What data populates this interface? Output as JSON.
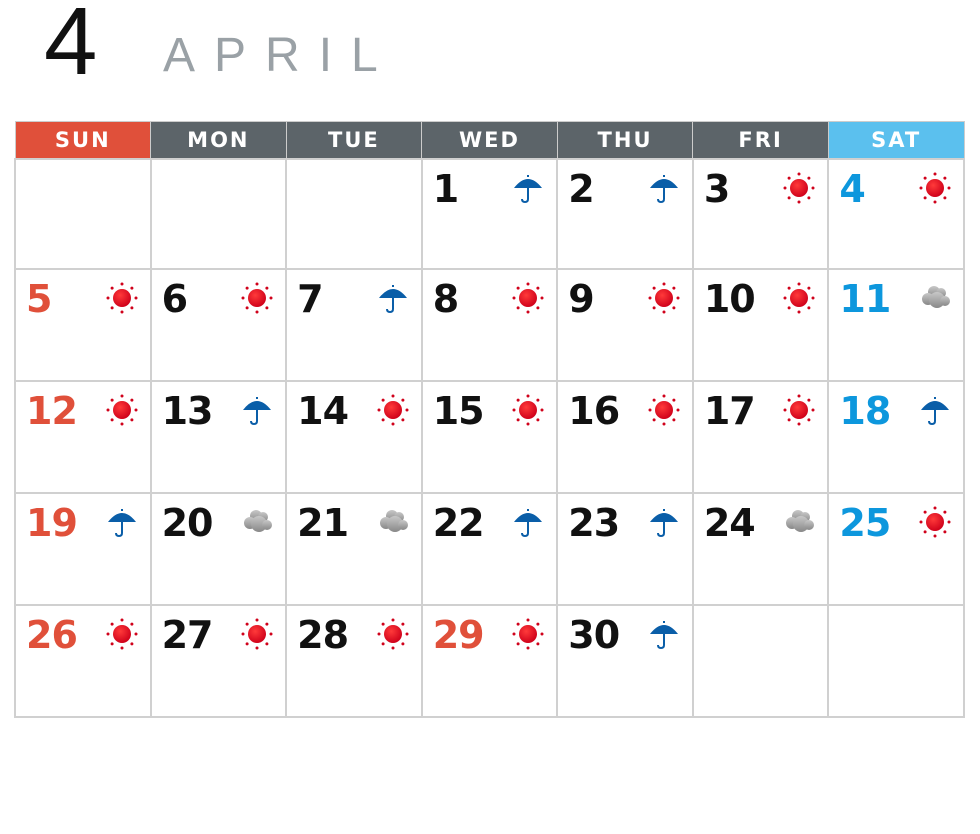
{
  "header": {
    "month_number": "4",
    "month_name": "APRIL"
  },
  "colors": {
    "sunday": "#e0503a",
    "saturday": "#0d97dd",
    "saturday_header": "#5bc0ee",
    "weekday_header": "#5c6469",
    "sun_icon": "#d0021b",
    "rain_icon": "#0a5ea8",
    "cloud_icon": "#9b9b9b"
  },
  "weekdays": [
    "SUN",
    "MON",
    "TUE",
    "WED",
    "THU",
    "FRI",
    "SAT"
  ],
  "weeks": [
    [
      null,
      null,
      null,
      {
        "day": "1",
        "weather": "rain"
      },
      {
        "day": "2",
        "weather": "rain"
      },
      {
        "day": "3",
        "weather": "sun"
      },
      {
        "day": "4",
        "weather": "sun"
      }
    ],
    [
      {
        "day": "5",
        "weather": "sun"
      },
      {
        "day": "6",
        "weather": "sun"
      },
      {
        "day": "7",
        "weather": "rain"
      },
      {
        "day": "8",
        "weather": "sun"
      },
      {
        "day": "9",
        "weather": "sun"
      },
      {
        "day": "10",
        "weather": "sun"
      },
      {
        "day": "11",
        "weather": "cloud"
      }
    ],
    [
      {
        "day": "12",
        "weather": "sun"
      },
      {
        "day": "13",
        "weather": "rain"
      },
      {
        "day": "14",
        "weather": "sun"
      },
      {
        "day": "15",
        "weather": "sun"
      },
      {
        "day": "16",
        "weather": "sun"
      },
      {
        "day": "17",
        "weather": "sun"
      },
      {
        "day": "18",
        "weather": "rain"
      }
    ],
    [
      {
        "day": "19",
        "weather": "rain"
      },
      {
        "day": "20",
        "weather": "cloud"
      },
      {
        "day": "21",
        "weather": "cloud"
      },
      {
        "day": "22",
        "weather": "rain"
      },
      {
        "day": "23",
        "weather": "rain"
      },
      {
        "day": "24",
        "weather": "cloud"
      },
      {
        "day": "25",
        "weather": "sun"
      }
    ],
    [
      {
        "day": "26",
        "weather": "sun"
      },
      {
        "day": "27",
        "weather": "sun"
      },
      {
        "day": "28",
        "weather": "sun"
      },
      {
        "day": "29",
        "weather": "sun",
        "holiday": true
      },
      {
        "day": "30",
        "weather": "rain"
      },
      null,
      null
    ]
  ]
}
